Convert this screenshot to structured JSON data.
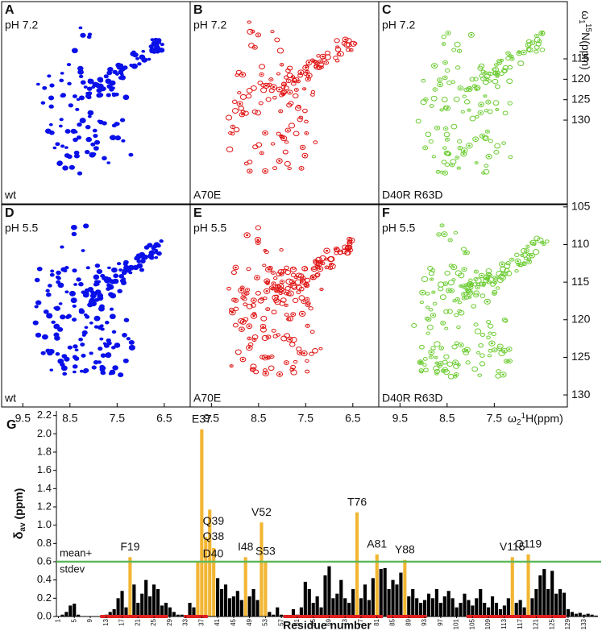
{
  "panels": [
    {
      "letter": "A",
      "ph": "pH 7.2",
      "sample": "wt",
      "color": "#0a10e8"
    },
    {
      "letter": "B",
      "ph": "pH 7.2",
      "sample": "A70E",
      "color": "#e01010"
    },
    {
      "letter": "C",
      "ph": "pH 7.2",
      "sample": "D40R R63D",
      "color": "#6ccc32"
    },
    {
      "letter": "D",
      "ph": "pH 5.5",
      "sample": "wt",
      "color": "#0a10e8"
    },
    {
      "letter": "E",
      "ph": "pH 5.5",
      "sample": "A70E",
      "color": "#e01010"
    },
    {
      "letter": "F",
      "ph": "pH 5.5",
      "sample": "D40R R63D",
      "color": "#6ccc32"
    }
  ],
  "spectra": {
    "xlim": [
      9.95,
      5.95
    ],
    "xticks": [
      9.5,
      8.5,
      7.5,
      6.5
    ],
    "xticks_last": [
      9.5,
      8.5,
      7.5
    ],
    "x_label": {
      "symbol": "ω",
      "sub": "2",
      "sup": "1",
      "rest": "H(ppm)"
    },
    "y_label": {
      "symbol": "ω",
      "sub": "1",
      "sup": "15",
      "rest": "N(ppm)"
    },
    "top": {
      "ylim": [
        101,
        150.5
      ],
      "yticks": [
        115,
        120,
        125,
        130
      ]
    },
    "bottom": {
      "ylim": [
        104.7,
        131.6
      ],
      "yticks": [
        105,
        110,
        115,
        120,
        125,
        130
      ]
    }
  },
  "chart_data": {
    "type": "bar",
    "panel": "G",
    "ylabel": {
      "symbol": "δ",
      "sub": "av",
      "rest": " (ppm)"
    },
    "xlabel": "Residue number",
    "categories": [
      "1",
      null,
      null,
      null,
      "5",
      null,
      null,
      null,
      "9",
      null,
      null,
      null,
      "13",
      null,
      null,
      null,
      "17",
      null,
      null,
      null,
      "21",
      null,
      null,
      null,
      "25",
      null,
      null,
      null,
      "29",
      null,
      null,
      null,
      "33",
      null,
      null,
      null,
      "37",
      null,
      null,
      null,
      "41",
      null,
      null,
      null,
      "45",
      null,
      null,
      null,
      "49",
      null,
      null,
      null,
      "53",
      null,
      null,
      null,
      "57",
      null,
      null,
      null,
      "61",
      null,
      null,
      null,
      "65",
      null,
      null,
      null,
      "69",
      null,
      null,
      null,
      "73",
      null,
      null,
      null,
      "77",
      null,
      null,
      null,
      "81",
      null,
      null,
      null,
      "85",
      null,
      null,
      null,
      "89",
      null,
      null,
      null,
      "93",
      null,
      null,
      null,
      "97",
      null,
      null,
      null,
      "101",
      null,
      null,
      null,
      "105",
      null,
      null,
      null,
      "109",
      null,
      null,
      null,
      "113",
      null,
      null,
      null,
      "117",
      null,
      null,
      null,
      "121",
      null,
      null,
      null,
      "125",
      null,
      null,
      null,
      "129",
      null,
      null,
      null,
      "133",
      null,
      null,
      null
    ],
    "values": [
      0,
      0.02,
      0.05,
      0.12,
      0.14,
      0.02,
      0,
      0,
      0,
      0,
      0,
      0,
      0.02,
      0.05,
      0.08,
      0.2,
      0.28,
      0.1,
      0.65,
      0.35,
      0.15,
      0.25,
      0.4,
      0.22,
      0.35,
      0.3,
      0.12,
      0.15,
      0.1,
      0.05,
      0.02,
      0.02,
      0.01,
      0.15,
      0.1,
      0.6,
      2.05,
      0.87,
      1.17,
      0.75,
      0.42,
      0.3,
      0.35,
      0.2,
      0.22,
      0.28,
      0.18,
      0.65,
      0.22,
      0.3,
      0.18,
      1.03,
      0.6,
      0.05,
      0.02,
      0.1,
      0.02,
      0,
      0,
      0.08,
      0.02,
      0.1,
      0.38,
      0.3,
      0.15,
      0.22,
      0.1,
      0.45,
      0.55,
      0.2,
      0.25,
      0.4,
      0.2,
      0.15,
      0.3,
      1.14,
      0.2,
      0.35,
      0.18,
      0.42,
      0.68,
      0.52,
      0.53,
      0.3,
      0.4,
      0.35,
      0.48,
      0.62,
      0.22,
      0.3,
      0.2,
      0.15,
      0.18,
      0.25,
      0.2,
      0.3,
      0.15,
      0.22,
      0.28,
      0.2,
      0.1,
      0.15,
      0.25,
      0.18,
      0.12,
      0.2,
      0.3,
      0.15,
      0.1,
      0.22,
      0.15,
      0.08,
      0.12,
      0.2,
      0.65,
      0.15,
      0.18,
      0.1,
      0.68,
      0.2,
      0.3,
      0.45,
      0.52,
      0.3,
      0.5,
      0.25,
      0.3,
      0.26,
      0.08,
      0.05,
      0.03,
      0.04,
      0.02,
      0.03,
      0.02,
      0.01
    ],
    "color": "#000000",
    "highlight": [
      18,
      35,
      36,
      37,
      38,
      39,
      47,
      51,
      52,
      75,
      80,
      87,
      114,
      118
    ],
    "highlight_color": "#f2b633",
    "ylim": [
      0,
      2.25
    ],
    "yticks": [
      {
        "value": 0,
        "label": "0.0"
      },
      0.2,
      0.4,
      0.6,
      0.8,
      {
        "value": 1,
        "label": "1.0"
      },
      1.2,
      1.4,
      1.6,
      1.8,
      {
        "value": 2,
        "label": "2.0"
      },
      2.2
    ],
    "threshold": {
      "value": 0.6,
      "label": [
        "mean+",
        "stdev"
      ],
      "color": "#5cb85c"
    },
    "regions": [
      [
        12,
        28
      ],
      [
        33,
        38
      ],
      [
        58,
        82
      ],
      [
        84,
        93
      ],
      [
        104,
        128
      ]
    ],
    "region_color": "#e02020",
    "annotations": [
      {
        "text": "F19",
        "index": 18
      },
      {
        "text": "E37",
        "index": 36
      },
      {
        "text": "Q38",
        "index": 37
      },
      {
        "text": "Q39",
        "index": 38
      },
      {
        "text": "D40",
        "index": 39
      },
      {
        "text": "I48",
        "index": 47
      },
      {
        "text": "V52",
        "index": 51
      },
      {
        "text": "S53",
        "index": 52
      },
      {
        "text": "T76",
        "index": 75
      },
      {
        "text": "A81",
        "index": 80
      },
      {
        "text": "Y88",
        "index": 87
      },
      {
        "text": "V115",
        "index": 114
      },
      {
        "text": "Q119",
        "index": 118
      }
    ]
  }
}
